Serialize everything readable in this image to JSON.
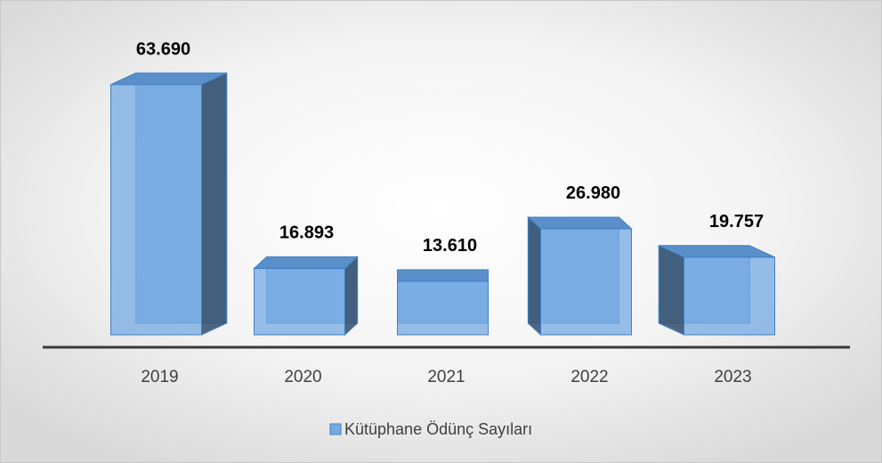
{
  "chart_data": {
    "type": "bar3d",
    "categories": [
      "2019",
      "2020",
      "2021",
      "2022",
      "2023"
    ],
    "series": [
      {
        "name": "Kütüphane Ödünç Sayıları",
        "color": "#74aae2",
        "values": [
          63690,
          16893,
          13610,
          26980,
          19757
        ],
        "value_labels": [
          "63.690",
          "16.893",
          "13.610",
          "26.980",
          "19.757"
        ]
      }
    ],
    "legend": "bottom"
  }
}
